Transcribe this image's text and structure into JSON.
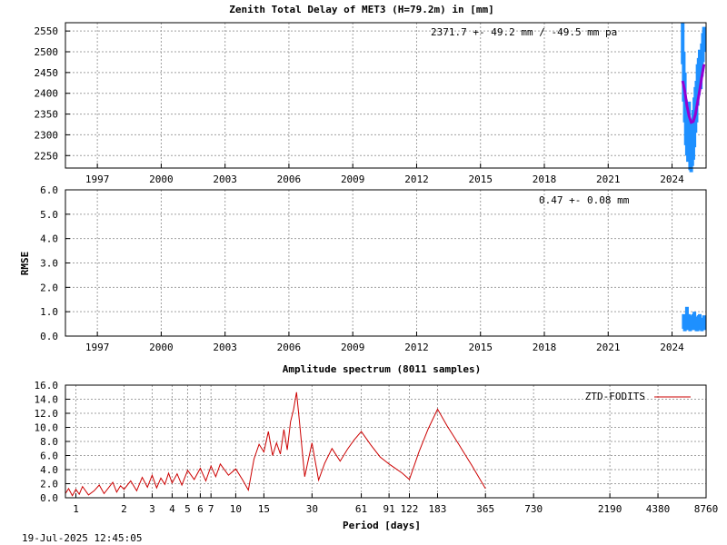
{
  "figure": {
    "timestamp": "19-Jul-2025 12:45:05"
  },
  "chart_data": [
    {
      "type": "scatter",
      "title": "Zenith Total Delay of MET3 (H=79.2m) in [mm]",
      "xlabel": "",
      "ylabel": "",
      "xlim": [
        1995.5,
        2025.6
      ],
      "ylim": [
        2220,
        2570
      ],
      "x_ticks": [
        1997,
        2000,
        2003,
        2006,
        2009,
        2012,
        2015,
        2018,
        2021,
        2024
      ],
      "y_ticks": [
        2250,
        2300,
        2350,
        2400,
        2450,
        2500,
        2550
      ],
      "grid": true,
      "annotation": "2371.7 +-  49.2 mm / -49.5 mm pa",
      "colors": {
        "points": "#1e90ff",
        "fit": "#9400d3"
      },
      "series": [
        {
          "kind": "points",
          "x": [
            2024.5,
            2024.55,
            2024.6,
            2024.65,
            2024.7,
            2024.75,
            2024.8,
            2024.85,
            2024.9,
            2024.95,
            2025.0,
            2025.05,
            2025.1,
            2025.15,
            2025.2,
            2025.25,
            2025.3,
            2025.35,
            2025.4,
            2025.45,
            2025.5
          ],
          "y": [
            2520,
            2440,
            2390,
            2330,
            2300,
            2290,
            2320,
            2270,
            2260,
            2280,
            2300,
            2330,
            2360,
            2380,
            2420,
            2440,
            2460,
            2450,
            2480,
            2510,
            2530
          ],
          "spread": [
            50,
            60,
            60,
            55,
            50,
            55,
            60,
            55,
            50,
            55,
            60,
            60,
            55,
            50,
            50,
            45,
            45,
            40,
            40,
            35,
            30
          ]
        },
        {
          "kind": "fit",
          "x": [
            2024.5,
            2024.6,
            2024.7,
            2024.8,
            2024.9,
            2025.0,
            2025.1,
            2025.2,
            2025.3,
            2025.4,
            2025.5
          ],
          "y": [
            2430,
            2405,
            2370,
            2345,
            2330,
            2332,
            2350,
            2378,
            2408,
            2440,
            2470
          ]
        }
      ]
    },
    {
      "type": "scatter",
      "title": "",
      "xlabel": "",
      "ylabel": "RMSE",
      "xlim": [
        1995.5,
        2025.6
      ],
      "ylim": [
        0,
        6
      ],
      "x_ticks": [
        1997,
        2000,
        2003,
        2006,
        2009,
        2012,
        2015,
        2018,
        2021,
        2024
      ],
      "y_ticks": [
        0.0,
        1.0,
        2.0,
        3.0,
        4.0,
        5.0,
        6.0
      ],
      "grid": true,
      "annotation": "0.47 +-  0.08 mm",
      "colors": {
        "points": "#1e90ff"
      },
      "series": [
        {
          "kind": "points",
          "x": [
            2024.55,
            2024.6,
            2024.65,
            2024.7,
            2024.75,
            2024.8,
            2024.85,
            2024.9,
            2024.95,
            2025.0,
            2025.05,
            2025.1,
            2025.15,
            2025.2,
            2025.25,
            2025.3,
            2025.35,
            2025.4,
            2025.45,
            2025.5
          ],
          "y": [
            0.6,
            0.5,
            0.55,
            0.9,
            0.5,
            0.6,
            0.45,
            0.5,
            0.55,
            0.6,
            0.7,
            0.5,
            0.45,
            0.5,
            0.55,
            0.6,
            0.5,
            0.45,
            0.5,
            0.55
          ],
          "spread": [
            0.3,
            0.3,
            0.3,
            0.3,
            0.25,
            0.3,
            0.25,
            0.25,
            0.3,
            0.3,
            0.3,
            0.25,
            0.25,
            0.3,
            0.3,
            0.3,
            0.25,
            0.25,
            0.25,
            0.3
          ]
        }
      ]
    },
    {
      "type": "line",
      "title": "Amplitude spectrum (8011 samples)",
      "xlabel": "Period [days]",
      "ylabel": "",
      "xscale": "log",
      "xlim": [
        0.86,
        8760
      ],
      "ylim": [
        0,
        16
      ],
      "x_ticks": [
        1,
        2,
        3,
        4,
        5,
        6,
        7,
        10,
        15,
        30,
        61,
        91,
        122,
        183,
        365,
        730,
        2190,
        4380,
        8760
      ],
      "y_ticks": [
        0.0,
        2.0,
        4.0,
        6.0,
        8.0,
        10.0,
        12.0,
        14.0,
        16.0
      ],
      "grid": true,
      "legend_position": "top-right",
      "colors": {
        "line": "#cc0000"
      },
      "series": [
        {
          "name": "ZTD-FODITS",
          "x": [
            0.86,
            0.9,
            0.95,
            1.0,
            1.05,
            1.1,
            1.2,
            1.3,
            1.4,
            1.5,
            1.6,
            1.7,
            1.8,
            1.9,
            2.0,
            2.2,
            2.4,
            2.6,
            2.8,
            3.0,
            3.2,
            3.4,
            3.6,
            3.8,
            4.0,
            4.3,
            4.6,
            5.0,
            5.5,
            6.0,
            6.5,
            7.0,
            7.5,
            8,
            9,
            10,
            11,
            12,
            13,
            14,
            15,
            16,
            17,
            18,
            19,
            20,
            21,
            22,
            23,
            24,
            25,
            27,
            30,
            33,
            36,
            40,
            45,
            50,
            55,
            61,
            70,
            80,
            91,
            110,
            122,
            140,
            160,
            183,
            210,
            250,
            300,
            365
          ],
          "y": [
            0.6,
            1.3,
            0.3,
            1.2,
            0.5,
            1.6,
            0.4,
            1.0,
            1.8,
            0.6,
            1.4,
            2.2,
            0.8,
            1.7,
            1.2,
            2.4,
            1.0,
            2.9,
            1.5,
            3.2,
            1.4,
            2.8,
            1.9,
            3.5,
            2.1,
            3.4,
            1.8,
            3.9,
            2.6,
            4.2,
            2.4,
            4.5,
            3.0,
            4.8,
            3.2,
            4.1,
            2.6,
            1.1,
            5.5,
            7.6,
            6.5,
            9.4,
            6.0,
            7.8,
            6.2,
            9.7,
            6.8,
            10.8,
            12.5,
            15.0,
            11.0,
            3.0,
            7.8,
            2.5,
            4.9,
            7.0,
            5.2,
            6.9,
            8.2,
            9.4,
            7.5,
            5.8,
            4.8,
            3.5,
            2.6,
            6.5,
            9.8,
            12.6,
            10.2,
            7.5,
            4.6,
            1.3
          ]
        }
      ]
    }
  ]
}
